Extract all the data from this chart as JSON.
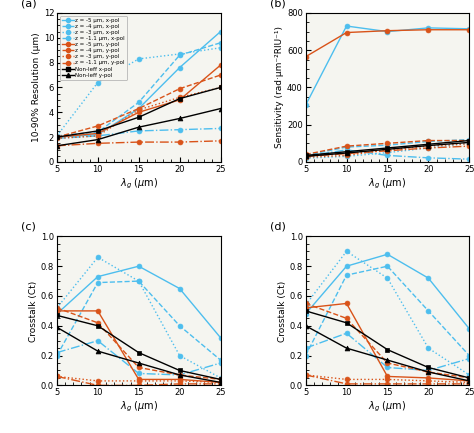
{
  "x": [
    5,
    10,
    15,
    20,
    25
  ],
  "panel_a": {
    "title": "(a)",
    "ylabel": "10-90% Resolution (μm)",
    "xlabel": "λ_g (μm)",
    "ylim": [
      0,
      12
    ],
    "yticks": [
      0,
      2,
      4,
      6,
      8,
      10,
      12
    ],
    "series": [
      {
        "label": "z = -5 μm, x-pol",
        "color": "#4DBEEE",
        "linestyle": "-",
        "marker": "o",
        "data": [
          2.0,
          2.2,
          4.3,
          7.6,
          10.5
        ]
      },
      {
        "label": "z = -4 μm, x-pol",
        "color": "#4DBEEE",
        "linestyle": "--",
        "marker": "o",
        "data": [
          2.1,
          2.4,
          4.8,
          8.6,
          9.6
        ]
      },
      {
        "label": "z = -3 μm, x-pol",
        "color": "#4DBEEE",
        "linestyle": ":",
        "marker": "o",
        "data": [
          2.1,
          6.4,
          8.3,
          8.7,
          9.2
        ]
      },
      {
        "label": "z = -1.1 μm, x-pol",
        "color": "#4DBEEE",
        "linestyle": "-.",
        "marker": "o",
        "data": [
          1.9,
          2.1,
          2.5,
          2.6,
          2.7
        ]
      },
      {
        "label": "z = -5 μm, y-pol",
        "color": "#D95319",
        "linestyle": "-",
        "marker": "o",
        "data": [
          2.0,
          2.3,
          4.0,
          5.0,
          7.8
        ]
      },
      {
        "label": "z = -4 μm, y-pol",
        "color": "#D95319",
        "linestyle": "--",
        "marker": "o",
        "data": [
          2.0,
          2.9,
          4.3,
          5.9,
          7.0
        ]
      },
      {
        "label": "z = -3 μm, y-pol",
        "color": "#D95319",
        "linestyle": ":",
        "marker": "o",
        "data": [
          1.9,
          2.1,
          4.2,
          5.2,
          6.0
        ]
      },
      {
        "label": "z = -1.1 μm, y-pol",
        "color": "#D95319",
        "linestyle": "-.",
        "marker": "o",
        "data": [
          1.3,
          1.5,
          1.6,
          1.6,
          1.7
        ]
      },
      {
        "label": "Non-Ieff x-pol",
        "color": "#000000",
        "linestyle": "-",
        "marker": "s",
        "data": [
          2.0,
          2.5,
          3.6,
          5.1,
          6.0
        ]
      },
      {
        "label": "Non-Ieff y-pol",
        "color": "#000000",
        "linestyle": "-",
        "marker": "^",
        "data": [
          1.3,
          1.8,
          2.8,
          3.5,
          4.3
        ]
      }
    ]
  },
  "panel_b": {
    "title": "(b)",
    "ylabel": "Sensitivity (rad·μm⁻²RIU⁻¹)",
    "xlabel": "λ_g (μm)",
    "ylim": [
      0,
      800
    ],
    "yticks": [
      0,
      200,
      400,
      600,
      800
    ],
    "series": [
      {
        "label": "z = -5 μm, x-pol",
        "color": "#4DBEEE",
        "linestyle": "-",
        "marker": "o",
        "data": [
          305,
          730,
          700,
          720,
          715
        ]
      },
      {
        "label": "z = -4 μm, x-pol",
        "color": "#4DBEEE",
        "linestyle": "--",
        "marker": "o",
        "data": [
          35,
          80,
          90,
          110,
          120
        ]
      },
      {
        "label": "z = -3 μm, x-pol",
        "color": "#4DBEEE",
        "linestyle": ":",
        "marker": "o",
        "data": [
          20,
          30,
          50,
          75,
          100
        ]
      },
      {
        "label": "z = -1.1 μm, x-pol",
        "color": "#4DBEEE",
        "linestyle": "-.",
        "marker": "o",
        "data": [
          30,
          65,
          35,
          22,
          15
        ]
      },
      {
        "label": "z = -5 μm, y-pol",
        "color": "#D95319",
        "linestyle": "-",
        "marker": "o",
        "data": [
          565,
          695,
          705,
          710,
          710
        ]
      },
      {
        "label": "z = -4 μm, y-pol",
        "color": "#D95319",
        "linestyle": "--",
        "marker": "o",
        "data": [
          40,
          85,
          100,
          115,
          115
        ]
      },
      {
        "label": "z = -3 μm, y-pol",
        "color": "#D95319",
        "linestyle": ":",
        "marker": "o",
        "data": [
          25,
          35,
          65,
          85,
          98
        ]
      },
      {
        "label": "z = -1.1 μm, y-pol",
        "color": "#D95319",
        "linestyle": "-.",
        "marker": "o",
        "data": [
          30,
          45,
          60,
          75,
          85
        ]
      },
      {
        "label": "Non-Ieff x-pol",
        "color": "#000000",
        "linestyle": "-",
        "marker": "s",
        "data": [
          35,
          55,
          75,
          95,
          115
        ]
      },
      {
        "label": "Non-Ieff y-pol",
        "color": "#000000",
        "linestyle": "-",
        "marker": "^",
        "data": [
          30,
          48,
          68,
          88,
          105
        ]
      }
    ]
  },
  "panel_c": {
    "title": "(c)",
    "ylabel": "Crosstalk (Ct)",
    "xlabel": "λ_g (μm)",
    "ylim": [
      0,
      1
    ],
    "yticks": [
      0,
      0.2,
      0.4,
      0.6,
      0.8,
      1.0
    ],
    "series": [
      {
        "label": "z = -5 μm, x-pol",
        "color": "#4DBEEE",
        "linestyle": "-",
        "marker": "o",
        "data": [
          0.48,
          0.73,
          0.8,
          0.65,
          0.32
        ]
      },
      {
        "label": "z = -4 μm, x-pol",
        "color": "#4DBEEE",
        "linestyle": "--",
        "marker": "o",
        "data": [
          0.2,
          0.69,
          0.7,
          0.4,
          0.17
        ]
      },
      {
        "label": "z = -3 μm, x-pol",
        "color": "#4DBEEE",
        "linestyle": ":",
        "marker": "o",
        "data": [
          0.52,
          0.86,
          0.7,
          0.2,
          0.05
        ]
      },
      {
        "label": "z = -1.1 μm, x-pol",
        "color": "#4DBEEE",
        "linestyle": "-.",
        "marker": "o",
        "data": [
          0.22,
          0.3,
          0.08,
          0.07,
          0.15
        ]
      },
      {
        "label": "z = -5 μm, y-pol",
        "color": "#D95319",
        "linestyle": "-",
        "marker": "o",
        "data": [
          0.5,
          0.5,
          0.04,
          0.04,
          0.02
        ]
      },
      {
        "label": "z = -4 μm, y-pol",
        "color": "#D95319",
        "linestyle": "--",
        "marker": "o",
        "data": [
          0.52,
          0.42,
          0.12,
          0.07,
          0.04
        ]
      },
      {
        "label": "z = -3 μm, y-pol",
        "color": "#D95319",
        "linestyle": ":",
        "marker": "o",
        "data": [
          0.06,
          0.03,
          0.03,
          0.03,
          0.02
        ]
      },
      {
        "label": "z = -1.1 μm, y-pol",
        "color": "#D95319",
        "linestyle": "-.",
        "marker": "o",
        "data": [
          0.06,
          0.0,
          0.0,
          0.01,
          0.01
        ]
      },
      {
        "label": "Non-Ieff x-pol",
        "color": "#000000",
        "linestyle": "-",
        "marker": "s",
        "data": [
          0.47,
          0.4,
          0.22,
          0.1,
          0.04
        ]
      },
      {
        "label": "Non-Ieff y-pol",
        "color": "#000000",
        "linestyle": "-",
        "marker": "^",
        "data": [
          0.39,
          0.23,
          0.15,
          0.07,
          0.02
        ]
      }
    ]
  },
  "panel_d": {
    "title": "(d)",
    "ylabel": "Crosstalk (Ct)",
    "xlabel": "λ_g (μm)",
    "ylim": [
      0,
      1
    ],
    "yticks": [
      0,
      0.2,
      0.4,
      0.6,
      0.8,
      1.0
    ],
    "series": [
      {
        "label": "z = -5 μm, x-pol",
        "color": "#4DBEEE",
        "linestyle": "-",
        "marker": "o",
        "data": [
          0.48,
          0.8,
          0.88,
          0.72,
          0.38
        ]
      },
      {
        "label": "z = -4 μm, x-pol",
        "color": "#4DBEEE",
        "linestyle": "--",
        "marker": "o",
        "data": [
          0.2,
          0.74,
          0.8,
          0.5,
          0.2
        ]
      },
      {
        "label": "z = -3 μm, x-pol",
        "color": "#4DBEEE",
        "linestyle": ":",
        "marker": "o",
        "data": [
          0.54,
          0.9,
          0.72,
          0.25,
          0.07
        ]
      },
      {
        "label": "z = -1.1 μm, x-pol",
        "color": "#4DBEEE",
        "linestyle": "-.",
        "marker": "o",
        "data": [
          0.25,
          0.35,
          0.12,
          0.1,
          0.18
        ]
      },
      {
        "label": "z = -5 μm, y-pol",
        "color": "#D95319",
        "linestyle": "-",
        "marker": "o",
        "data": [
          0.52,
          0.55,
          0.06,
          0.05,
          0.03
        ]
      },
      {
        "label": "z = -4 μm, y-pol",
        "color": "#D95319",
        "linestyle": "--",
        "marker": "o",
        "data": [
          0.55,
          0.45,
          0.15,
          0.09,
          0.05
        ]
      },
      {
        "label": "z = -3 μm, y-pol",
        "color": "#D95319",
        "linestyle": ":",
        "marker": "o",
        "data": [
          0.07,
          0.04,
          0.04,
          0.03,
          0.02
        ]
      },
      {
        "label": "z = -1.1 μm, y-pol",
        "color": "#D95319",
        "linestyle": "-.",
        "marker": "o",
        "data": [
          0.07,
          0.01,
          0.01,
          0.01,
          0.01
        ]
      },
      {
        "label": "Non-Ieff x-pol",
        "color": "#000000",
        "linestyle": "-",
        "marker": "s",
        "data": [
          0.5,
          0.42,
          0.24,
          0.12,
          0.05
        ]
      },
      {
        "label": "Non-Ieff y-pol",
        "color": "#000000",
        "linestyle": "-",
        "marker": "^",
        "data": [
          0.4,
          0.25,
          0.17,
          0.09,
          0.03
        ]
      }
    ]
  }
}
